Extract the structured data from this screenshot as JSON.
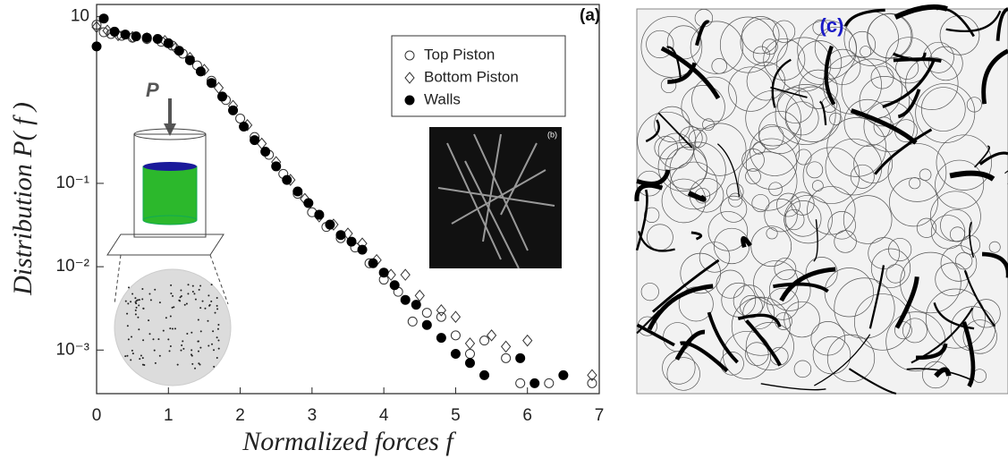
{
  "chart_data": {
    "type": "scatter",
    "xlabel": "Normalized forces f",
    "ylabel": "Distribution P( f )",
    "annotations": [
      "(a)",
      "(b)",
      "(c)",
      "P"
    ],
    "log_y": true,
    "xlim": [
      0,
      7
    ],
    "xticks": [
      0,
      1,
      2,
      3,
      4,
      5,
      6,
      7
    ],
    "ylim": [
      0.0003,
      14
    ],
    "yticks": [
      {
        "value": 10,
        "label": "10"
      },
      {
        "value": 0.1,
        "label": "10⁻¹"
      },
      {
        "value": 0.01,
        "label": "10⁻²"
      },
      {
        "value": 0.001,
        "label": "10⁻³"
      }
    ],
    "series": [
      {
        "name": "Top Piston",
        "marker": "open-circle",
        "color": "#333333",
        "x": [
          0,
          0.1,
          0.2,
          0.35,
          0.5,
          0.7,
          0.9,
          1.05,
          1.2,
          1.4,
          1.6,
          1.8,
          2.0,
          2.2,
          2.4,
          2.6,
          2.8,
          3.0,
          3.2,
          3.4,
          3.6,
          3.8,
          4.0,
          4.2,
          4.4,
          4.6,
          4.8,
          5.0,
          5.2,
          5.4,
          5.7,
          5.9,
          6.3,
          6.9
        ],
        "values": [
          8,
          6.5,
          6.2,
          5.9,
          5.6,
          5.4,
          5.0,
          4.5,
          3.6,
          2.6,
          1.7,
          1.0,
          0.6,
          0.36,
          0.22,
          0.13,
          0.075,
          0.045,
          0.03,
          0.022,
          0.017,
          0.011,
          0.007,
          0.005,
          0.0022,
          0.0028,
          0.0025,
          0.0015,
          0.0009,
          0.0013,
          0.0008,
          0.0004,
          0.0004,
          0.0004
        ]
      },
      {
        "name": "Bottom Piston",
        "marker": "open-diamond",
        "color": "#333333",
        "x": [
          0,
          0.15,
          0.3,
          0.5,
          0.7,
          0.95,
          1.1,
          1.3,
          1.5,
          1.7,
          1.9,
          2.1,
          2.3,
          2.5,
          2.7,
          2.9,
          3.1,
          3.3,
          3.5,
          3.7,
          3.9,
          4.1,
          4.3,
          4.5,
          4.8,
          5.0,
          5.2,
          5.5,
          5.7,
          6.0,
          6.9
        ],
        "values": [
          7.5,
          6.8,
          6.0,
          5.7,
          5.5,
          5.1,
          4.2,
          3.2,
          2.3,
          1.4,
          0.85,
          0.5,
          0.3,
          0.18,
          0.11,
          0.065,
          0.04,
          0.032,
          0.025,
          0.019,
          0.012,
          0.008,
          0.008,
          0.0045,
          0.003,
          0.0025,
          0.0012,
          0.0015,
          0.0011,
          0.0013,
          0.0005
        ]
      },
      {
        "name": "Walls",
        "marker": "filled-circle",
        "color": "#000000",
        "x": [
          0,
          0.1,
          0.25,
          0.4,
          0.55,
          0.7,
          0.85,
          1.0,
          1.15,
          1.3,
          1.45,
          1.6,
          1.75,
          1.9,
          2.05,
          2.2,
          2.35,
          2.5,
          2.65,
          2.8,
          2.95,
          3.1,
          3.25,
          3.4,
          3.55,
          3.7,
          3.85,
          4.0,
          4.15,
          4.3,
          4.45,
          4.6,
          4.8,
          5.0,
          5.2,
          5.4,
          5.9,
          6.1,
          6.5
        ],
        "values": [
          4.4,
          9.5,
          6.6,
          6.1,
          5.8,
          5.6,
          5.4,
          4.8,
          3.9,
          3.0,
          2.2,
          1.6,
          1.1,
          0.75,
          0.48,
          0.33,
          0.24,
          0.16,
          0.11,
          0.08,
          0.058,
          0.042,
          0.032,
          0.024,
          0.02,
          0.016,
          0.011,
          0.0085,
          0.006,
          0.004,
          0.0035,
          0.002,
          0.0014,
          0.0009,
          0.0007,
          0.0005,
          0.0008,
          0.0004,
          0.0005
        ]
      }
    ],
    "legend": "upper right"
  }
}
